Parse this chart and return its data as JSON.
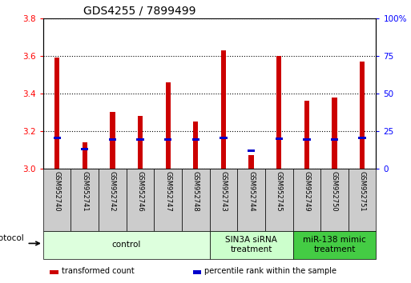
{
  "title": "GDS4255 / 7899499",
  "samples": [
    "GSM952740",
    "GSM952741",
    "GSM952742",
    "GSM952746",
    "GSM952747",
    "GSM952748",
    "GSM952743",
    "GSM952744",
    "GSM952745",
    "GSM952749",
    "GSM952750",
    "GSM952751"
  ],
  "transformed_count": [
    3.59,
    3.14,
    3.3,
    3.28,
    3.46,
    3.25,
    3.63,
    3.07,
    3.6,
    3.36,
    3.38,
    3.57
  ],
  "percentile_rank": [
    3.155,
    3.095,
    3.148,
    3.148,
    3.148,
    3.148,
    3.155,
    3.088,
    3.152,
    3.148,
    3.148,
    3.155
  ],
  "ylim_left": [
    3.0,
    3.8
  ],
  "ylim_right": [
    0,
    100
  ],
  "yticks_left": [
    3.0,
    3.2,
    3.4,
    3.6,
    3.8
  ],
  "yticks_right": [
    0,
    25,
    50,
    75,
    100
  ],
  "bar_color": "#cc0000",
  "percentile_color": "#0000cc",
  "bar_width": 0.18,
  "groups": [
    {
      "label": "control",
      "start": 0,
      "end": 5,
      "color": "#ddffdd"
    },
    {
      "label": "SIN3A siRNA\ntreatment",
      "start": 6,
      "end": 8,
      "color": "#ccffcc"
    },
    {
      "label": "miR-138 mimic\ntreatment",
      "start": 9,
      "end": 11,
      "color": "#44cc44"
    }
  ],
  "protocol_label": "protocol",
  "legend_items": [
    {
      "label": "transformed count",
      "color": "#cc0000"
    },
    {
      "label": "percentile rank within the sample",
      "color": "#0000cc"
    }
  ],
  "title_fontsize": 10,
  "tick_fontsize": 7.5,
  "label_fontsize": 7
}
